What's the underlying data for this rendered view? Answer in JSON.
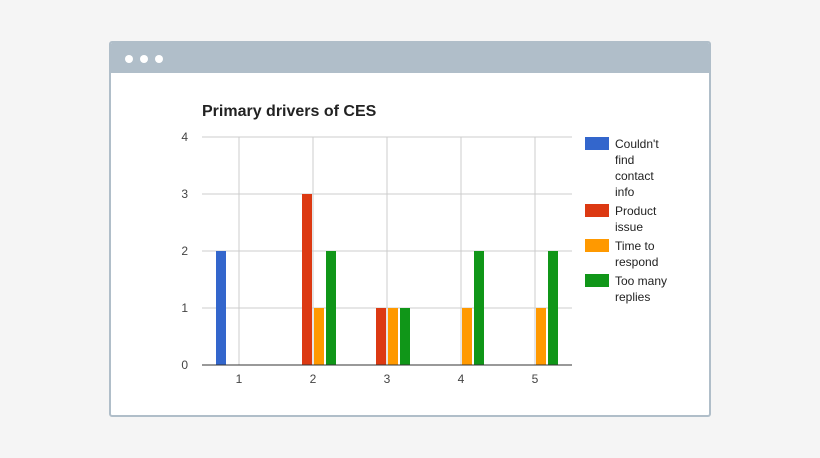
{
  "window": {
    "colors": {
      "frame": "#b0bec9",
      "background": "#ffffff"
    }
  },
  "chart_data": {
    "type": "bar",
    "title": "Primary drivers of CES",
    "xlabel": "",
    "ylabel": "",
    "categories": [
      "1",
      "2",
      "3",
      "4",
      "5"
    ],
    "ylim": [
      0,
      4
    ],
    "yticks": [
      "0",
      "1",
      "2",
      "3",
      "4"
    ],
    "grid": true,
    "legend_position": "right",
    "series": [
      {
        "name": "Couldn't find contact info",
        "color": "#3366cc",
        "values": [
          2,
          0,
          0,
          0,
          0
        ]
      },
      {
        "name": "Product issue",
        "color": "#dc3912",
        "values": [
          0,
          3,
          1,
          0,
          0
        ]
      },
      {
        "name": "Time to respond",
        "color": "#ff9900",
        "values": [
          0,
          1,
          1,
          1,
          1
        ]
      },
      {
        "name": "Too many replies",
        "color": "#109618",
        "values": [
          0,
          2,
          1,
          2,
          2
        ]
      }
    ]
  }
}
